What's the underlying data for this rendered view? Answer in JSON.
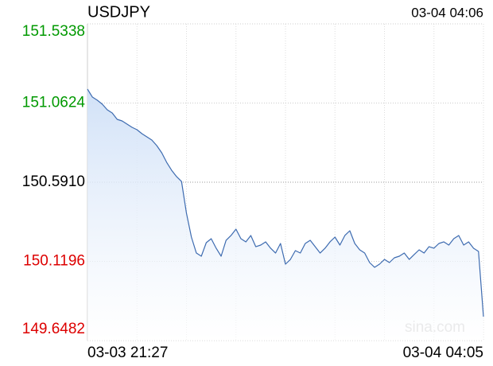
{
  "chart_data": {
    "type": "line",
    "title": "USDJPY",
    "timestamp": "03-04 04:06",
    "watermark": "sina.com",
    "ylim": [
      149.6482,
      151.5338
    ],
    "yticks": [
      151.5338,
      151.0624,
      {
        "value": 150.591,
        "label": "150.5910"
      },
      150.1196,
      149.6482
    ],
    "up_color": "#009900",
    "down_color": "#dd0000",
    "grid": true,
    "categories": [
      "03-03 21:27",
      null,
      null,
      null,
      null,
      null,
      null,
      null,
      null,
      null,
      null,
      null,
      null,
      null,
      null,
      null,
      null,
      null,
      null,
      null,
      null,
      null,
      null,
      null,
      null,
      null,
      null,
      null,
      null,
      null,
      null,
      null,
      null,
      null,
      null,
      null,
      null,
      null,
      null,
      null,
      null,
      null,
      null,
      null,
      null,
      null,
      null,
      null,
      null,
      null,
      null,
      null,
      null,
      null,
      null,
      null,
      null,
      null,
      null,
      null,
      null,
      null,
      null,
      null,
      null,
      null,
      null,
      null,
      null,
      null,
      null,
      null,
      null,
      null,
      null,
      null,
      null,
      null,
      null,
      null,
      "03-04 04:05"
    ],
    "series": [
      {
        "name": "USDJPY",
        "color": "#3d6bb0",
        "values": [
          151.1453,
          151.0979,
          151.079,
          151.0553,
          151.0221,
          151.0032,
          150.9653,
          150.9558,
          150.9369,
          150.9179,
          150.9037,
          150.88,
          150.861,
          150.8421,
          150.8089,
          150.7663,
          150.7094,
          150.6621,
          150.6242,
          150.5957,
          150.4062,
          150.2641,
          150.1693,
          150.1504,
          150.2309,
          150.2546,
          150.1978,
          150.1504,
          150.2451,
          150.2736,
          150.3115,
          150.2546,
          150.2357,
          150.2736,
          150.2072,
          150.2167,
          150.2357,
          150.1978,
          150.1693,
          150.2262,
          150.103,
          150.1314,
          150.1836,
          150.1693,
          150.2262,
          150.2451,
          150.2072,
          150.1693,
          150.1978,
          150.2357,
          150.2641,
          150.2167,
          150.2736,
          150.302,
          150.2262,
          150.1883,
          150.1693,
          150.1125,
          150.0841,
          150.103,
          150.1314,
          150.1125,
          150.1409,
          150.1504,
          150.1693,
          150.1314,
          150.1599,
          150.1883,
          150.1693,
          150.2072,
          150.1978,
          150.2262,
          150.2357,
          150.2167,
          150.2546,
          150.2736,
          150.2167,
          150.2357,
          150.1978,
          150.1788,
          149.7903
        ]
      }
    ]
  }
}
